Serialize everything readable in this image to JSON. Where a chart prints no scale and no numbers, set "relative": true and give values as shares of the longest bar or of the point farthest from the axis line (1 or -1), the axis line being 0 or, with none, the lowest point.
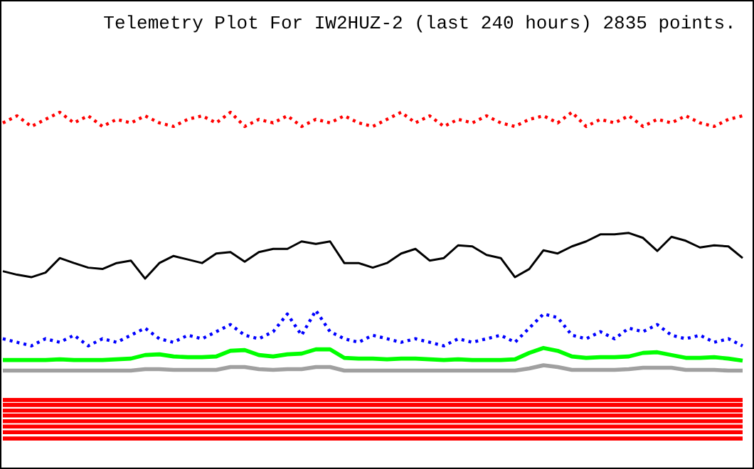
{
  "chart_data": {
    "type": "line",
    "title": "Telemetry Plot For IW2HUZ-2 (last 240 hours) 2835 points.",
    "relative": true,
    "categories": [
      null,
      null,
      null,
      null,
      null,
      null,
      null,
      null,
      null,
      null,
      null,
      null,
      null,
      null,
      null,
      null,
      null,
      null,
      null,
      null,
      null,
      null,
      null,
      null,
      null,
      null,
      null,
      null,
      null,
      null,
      null,
      null,
      null,
      null,
      null,
      null,
      null,
      null,
      null,
      null,
      null,
      null,
      null,
      null,
      null,
      null,
      null,
      null,
      null,
      null,
      null,
      null,
      null
    ],
    "series": [
      {
        "line_style": "dotted",
        "color": "#ff0000",
        "values": [
          0.97,
          0.99,
          0.96,
          0.98,
          1,
          0.97,
          0.99,
          0.96,
          0.98,
          0.97,
          0.99,
          0.97,
          0.96,
          0.98,
          0.99,
          0.97,
          1,
          0.96,
          0.98,
          0.97,
          0.99,
          0.96,
          0.98,
          0.97,
          0.99,
          0.97,
          0.96,
          0.98,
          1,
          0.97,
          0.99,
          0.96,
          0.98,
          0.97,
          0.99,
          0.97,
          0.96,
          0.98,
          0.99,
          0.97,
          1,
          0.96,
          0.98,
          0.97,
          0.99,
          0.96,
          0.98,
          0.97,
          0.99,
          0.97,
          0.96,
          0.98,
          0.99
        ]
      },
      {
        "color": "#000000",
        "values": [
          0.551,
          0.541,
          0.534,
          0.547,
          0.588,
          0.574,
          0.561,
          0.557,
          0.574,
          0.581,
          0.53,
          0.574,
          0.594,
          0.584,
          0.574,
          0.601,
          0.605,
          0.578,
          0.605,
          0.614,
          0.614,
          0.635,
          0.628,
          0.635,
          0.574,
          0.574,
          0.561,
          0.574,
          0.601,
          0.614,
          0.581,
          0.588,
          0.624,
          0.621,
          0.597,
          0.588,
          0.534,
          0.557,
          0.61,
          0.601,
          0.621,
          0.635,
          0.655,
          0.655,
          0.659,
          0.645,
          0.608,
          0.648,
          0.637,
          0.618,
          0.624,
          0.621,
          0.588
        ]
      },
      {
        "line_style": "dotted",
        "color": "#0000ff",
        "values": [
          0.36,
          0.35,
          0.34,
          0.36,
          0.35,
          0.37,
          0.34,
          0.36,
          0.35,
          0.37,
          0.39,
          0.36,
          0.35,
          0.37,
          0.36,
          0.38,
          0.4,
          0.37,
          0.36,
          0.38,
          0.43,
          0.37,
          0.44,
          0.38,
          0.36,
          0.35,
          0.37,
          0.36,
          0.35,
          0.36,
          0.35,
          0.34,
          0.36,
          0.35,
          0.36,
          0.37,
          0.35,
          0.39,
          0.43,
          0.42,
          0.37,
          0.36,
          0.38,
          0.36,
          0.39,
          0.38,
          0.4,
          0.37,
          0.36,
          0.37,
          0.35,
          0.36,
          0.34
        ]
      },
      {
        "color": "#00ff00",
        "values": [
          0.3,
          0.3,
          0.3,
          0.3,
          0.302,
          0.3,
          0.3,
          0.3,
          0.302,
          0.304,
          0.314,
          0.316,
          0.31,
          0.308,
          0.308,
          0.31,
          0.326,
          0.328,
          0.314,
          0.31,
          0.316,
          0.318,
          0.33,
          0.33,
          0.306,
          0.304,
          0.304,
          0.302,
          0.304,
          0.304,
          0.302,
          0.3,
          0.302,
          0.3,
          0.3,
          0.3,
          0.302,
          0.32,
          0.334,
          0.326,
          0.31,
          0.306,
          0.308,
          0.308,
          0.31,
          0.32,
          0.322,
          0.314,
          0.306,
          0.306,
          0.308,
          0.304,
          0.298
        ]
      },
      {
        "color": "#a0a0a0",
        "values": [
          0.27,
          0.27,
          0.27,
          0.27,
          0.27,
          0.27,
          0.27,
          0.27,
          0.27,
          0.27,
          0.274,
          0.274,
          0.272,
          0.272,
          0.272,
          0.272,
          0.28,
          0.28,
          0.274,
          0.272,
          0.274,
          0.274,
          0.28,
          0.28,
          0.27,
          0.27,
          0.27,
          0.27,
          0.27,
          0.27,
          0.27,
          0.27,
          0.27,
          0.27,
          0.27,
          0.27,
          0.27,
          0.276,
          0.285,
          0.28,
          0.272,
          0.272,
          0.272,
          0.272,
          0.274,
          0.278,
          0.278,
          0.278,
          0.272,
          0.272,
          0.272,
          0.27,
          0.27
        ]
      },
      {
        "type": "line",
        "color": "#ff0000",
        "values": [
          0.187,
          0.187,
          0.187,
          0.187,
          0.187,
          0.187,
          0.187,
          0.187,
          0.187,
          0.187,
          0.187,
          0.187,
          0.187,
          0.187,
          0.187,
          0.187,
          0.187,
          0.187,
          0.187,
          0.187,
          0.187,
          0.187,
          0.187,
          0.187,
          0.187,
          0.187,
          0.187,
          0.187,
          0.187,
          0.187,
          0.187,
          0.187,
          0.187,
          0.187,
          0.187,
          0.187,
          0.187,
          0.187,
          0.187,
          0.187,
          0.187,
          0.187,
          0.187,
          0.187,
          0.187,
          0.187,
          0.187,
          0.187,
          0.187,
          0.187,
          0.187,
          0.187,
          0.187
        ]
      },
      {
        "type": "line",
        "color": "#ff0000",
        "values": [
          0.173,
          0.173,
          0.173,
          0.173,
          0.173,
          0.173,
          0.173,
          0.173,
          0.173,
          0.173,
          0.173,
          0.173,
          0.173,
          0.173,
          0.173,
          0.173,
          0.173,
          0.173,
          0.173,
          0.173,
          0.173,
          0.173,
          0.173,
          0.173,
          0.173,
          0.173,
          0.173,
          0.173,
          0.173,
          0.173,
          0.173,
          0.173,
          0.173,
          0.173,
          0.173,
          0.173,
          0.173,
          0.173,
          0.173,
          0.173,
          0.173,
          0.173,
          0.173,
          0.173,
          0.173,
          0.173,
          0.173,
          0.173,
          0.173,
          0.173,
          0.173,
          0.173,
          0.173
        ]
      },
      {
        "type": "line",
        "color": "#ff0000",
        "values": [
          0.157,
          0.157,
          0.157,
          0.157,
          0.157,
          0.157,
          0.157,
          0.157,
          0.157,
          0.157,
          0.157,
          0.157,
          0.157,
          0.157,
          0.157,
          0.157,
          0.157,
          0.157,
          0.157,
          0.157,
          0.157,
          0.157,
          0.157,
          0.157,
          0.157,
          0.157,
          0.157,
          0.157,
          0.157,
          0.157,
          0.157,
          0.157,
          0.157,
          0.157,
          0.157,
          0.157,
          0.157,
          0.157,
          0.157,
          0.157,
          0.157,
          0.157,
          0.157,
          0.157,
          0.157,
          0.157,
          0.157,
          0.157,
          0.157,
          0.157,
          0.157,
          0.157,
          0.157
        ]
      },
      {
        "type": "line",
        "color": "#ff0000",
        "values": [
          0.143,
          0.143,
          0.143,
          0.143,
          0.143,
          0.143,
          0.143,
          0.143,
          0.143,
          0.143,
          0.143,
          0.143,
          0.143,
          0.143,
          0.143,
          0.143,
          0.143,
          0.143,
          0.143,
          0.143,
          0.143,
          0.143,
          0.143,
          0.143,
          0.143,
          0.143,
          0.143,
          0.143,
          0.143,
          0.143,
          0.143,
          0.143,
          0.143,
          0.143,
          0.143,
          0.143,
          0.143,
          0.143,
          0.143,
          0.143,
          0.143,
          0.143,
          0.143,
          0.143,
          0.143,
          0.143,
          0.143,
          0.143,
          0.143,
          0.143,
          0.143,
          0.143,
          0.143
        ]
      },
      {
        "type": "line",
        "color": "#ff0000",
        "values": [
          0.127,
          0.127,
          0.127,
          0.127,
          0.127,
          0.127,
          0.127,
          0.127,
          0.127,
          0.127,
          0.127,
          0.127,
          0.127,
          0.127,
          0.127,
          0.127,
          0.127,
          0.127,
          0.127,
          0.127,
          0.127,
          0.127,
          0.127,
          0.127,
          0.127,
          0.127,
          0.127,
          0.127,
          0.127,
          0.127,
          0.127,
          0.127,
          0.127,
          0.127,
          0.127,
          0.127,
          0.127,
          0.127,
          0.127,
          0.127,
          0.127,
          0.127,
          0.127,
          0.127,
          0.127,
          0.127,
          0.127,
          0.127,
          0.127,
          0.127,
          0.127,
          0.127,
          0.127
        ]
      },
      {
        "type": "line",
        "color": "#ff0000",
        "values": [
          0.112,
          0.112,
          0.112,
          0.112,
          0.112,
          0.112,
          0.112,
          0.112,
          0.112,
          0.112,
          0.112,
          0.112,
          0.112,
          0.112,
          0.112,
          0.112,
          0.112,
          0.112,
          0.112,
          0.112,
          0.112,
          0.112,
          0.112,
          0.112,
          0.112,
          0.112,
          0.112,
          0.112,
          0.112,
          0.112,
          0.112,
          0.112,
          0.112,
          0.112,
          0.112,
          0.112,
          0.112,
          0.112,
          0.112,
          0.112,
          0.112,
          0.112,
          0.112,
          0.112,
          0.112,
          0.112,
          0.112,
          0.112,
          0.112,
          0.112,
          0.112,
          0.112,
          0.112
        ]
      },
      {
        "type": "line",
        "color": "#ff0000",
        "values": [
          0.096,
          0.096,
          0.096,
          0.096,
          0.096,
          0.096,
          0.096,
          0.096,
          0.096,
          0.096,
          0.096,
          0.096,
          0.096,
          0.096,
          0.096,
          0.096,
          0.096,
          0.096,
          0.096,
          0.096,
          0.096,
          0.096,
          0.096,
          0.096,
          0.096,
          0.096,
          0.096,
          0.096,
          0.096,
          0.096,
          0.096,
          0.096,
          0.096,
          0.096,
          0.096,
          0.096,
          0.096,
          0.096,
          0.096,
          0.096,
          0.096,
          0.096,
          0.096,
          0.096,
          0.096,
          0.096,
          0.096,
          0.096,
          0.096,
          0.096,
          0.096,
          0.096,
          0.096
        ]
      },
      {
        "type": "line",
        "color": "#ff0000",
        "values": [
          0.078,
          0.078,
          0.078,
          0.078,
          0.078,
          0.078,
          0.078,
          0.078,
          0.078,
          0.078,
          0.078,
          0.078,
          0.078,
          0.078,
          0.078,
          0.078,
          0.078,
          0.078,
          0.078,
          0.078,
          0.078,
          0.078,
          0.078,
          0.078,
          0.078,
          0.078,
          0.078,
          0.078,
          0.078,
          0.078,
          0.078,
          0.078,
          0.078,
          0.078,
          0.078,
          0.078,
          0.078,
          0.078,
          0.078,
          0.078,
          0.078,
          0.078,
          0.078,
          0.078,
          0.078,
          0.078,
          0.078,
          0.078,
          0.078,
          0.078,
          0.078,
          0.078,
          0.078
        ]
      }
    ]
  }
}
